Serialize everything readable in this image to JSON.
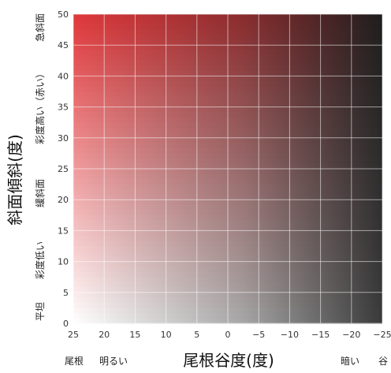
{
  "chart_data": {
    "type": "heatmap",
    "xlabel": "尾根谷度(度)",
    "ylabel": "斜面傾斜(度)",
    "x_ticks": [
      25,
      20,
      15,
      10,
      5,
      0,
      -5,
      -10,
      -15,
      -20,
      -25
    ],
    "y_ticks": [
      0,
      5,
      10,
      15,
      20,
      25,
      30,
      35,
      40,
      45,
      50
    ],
    "xlim": [
      25,
      -25
    ],
    "ylim": [
      0,
      50
    ],
    "x_direction": "reversed",
    "grid": true,
    "colors": {
      "steep_ridge": "#e0373a",
      "steep_valley": "#1e1e1e",
      "flat_ridge": "#ffffff",
      "flat_valley": "#3a3a3a"
    },
    "x_annotations": {
      "left": "尾根",
      "left_mid": "明るい",
      "right_mid": "暗い",
      "right": "谷"
    },
    "y_annotations": {
      "top": "急斜面",
      "upper_mid": "彩度高い（赤い）",
      "middle": "緩斜面",
      "lower_mid": "彩度低い",
      "bottom": "平坦"
    }
  }
}
